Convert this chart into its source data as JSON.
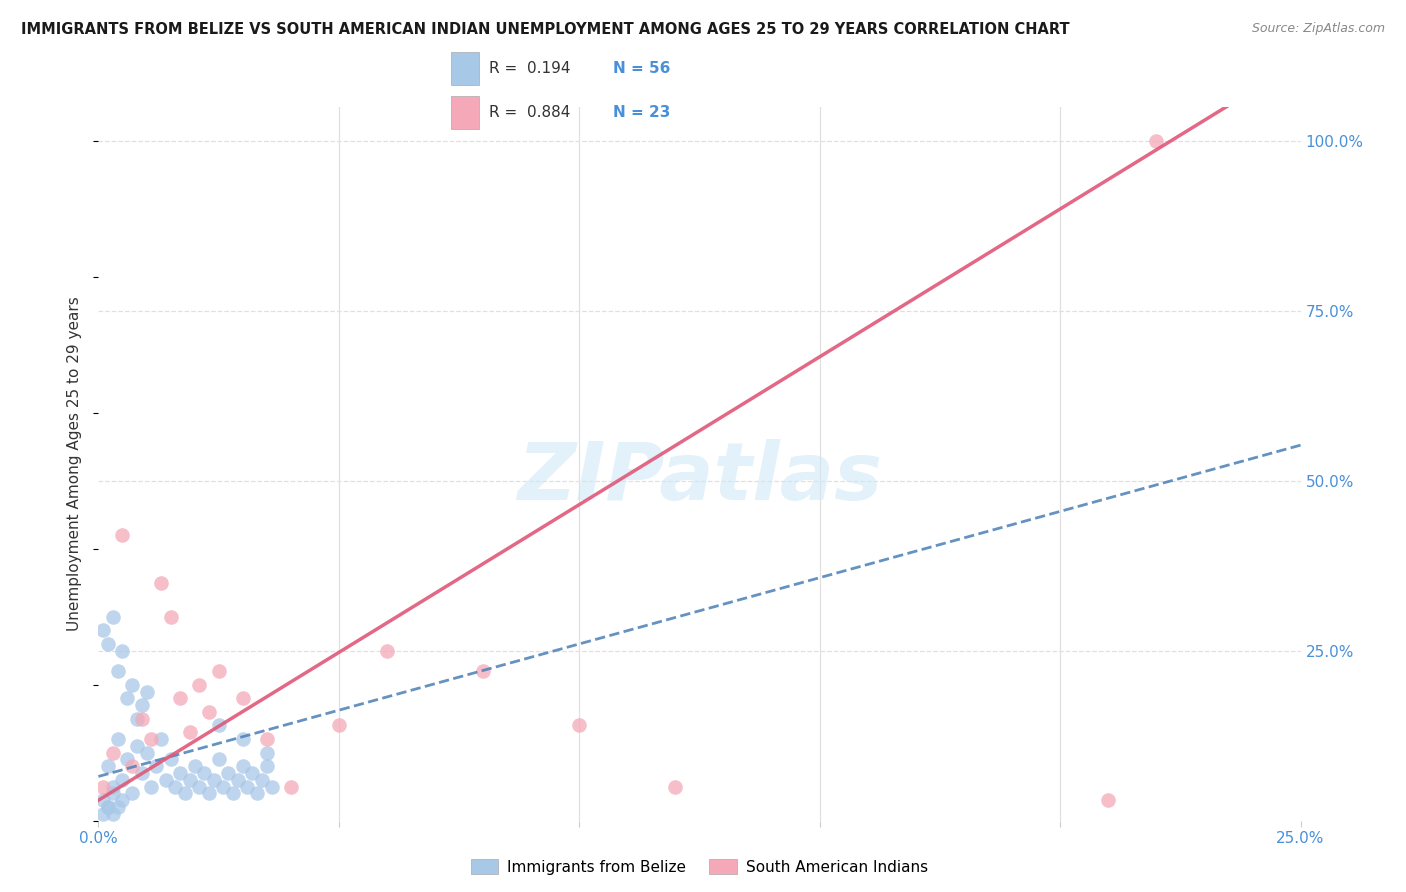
{
  "title": "IMMIGRANTS FROM BELIZE VS SOUTH AMERICAN INDIAN UNEMPLOYMENT AMONG AGES 25 TO 29 YEARS CORRELATION CHART",
  "source": "Source: ZipAtlas.com",
  "ylabel": "Unemployment Among Ages 25 to 29 years",
  "xlim": [
    0.0,
    0.25
  ],
  "ylim": [
    0.0,
    1.05
  ],
  "xticks": [
    0.0,
    0.05,
    0.1,
    0.15,
    0.2,
    0.25
  ],
  "yticks": [
    0.0,
    0.25,
    0.5,
    0.75,
    1.0
  ],
  "xtick_labels": [
    "0.0%",
    "",
    "",
    "",
    "",
    "25.0%"
  ],
  "ytick_labels_right": [
    "",
    "25.0%",
    "50.0%",
    "75.0%",
    "100.0%"
  ],
  "background_color": "#ffffff",
  "grid_color": "#e0e0e0",
  "watermark": "ZIPatlas",
  "legend_R1": "R =  0.194",
  "legend_N1": "N = 56",
  "legend_R2": "R =  0.884",
  "legend_N2": "N = 23",
  "series1_color": "#a8c8e8",
  "series2_color": "#f4a8b8",
  "trend1_color": "#4a7fb5",
  "trend2_color": "#e05878",
  "blue_dots_x": [
    0.002,
    0.003,
    0.004,
    0.005,
    0.006,
    0.007,
    0.008,
    0.009,
    0.01,
    0.011,
    0.012,
    0.013,
    0.014,
    0.015,
    0.016,
    0.017,
    0.018,
    0.019,
    0.02,
    0.021,
    0.022,
    0.023,
    0.024,
    0.025,
    0.026,
    0.027,
    0.028,
    0.029,
    0.03,
    0.031,
    0.032,
    0.033,
    0.034,
    0.035,
    0.036,
    0.001,
    0.002,
    0.003,
    0.004,
    0.005,
    0.006,
    0.007,
    0.008,
    0.009,
    0.01,
    0.001,
    0.002,
    0.003,
    0.004,
    0.005,
    0.001,
    0.002,
    0.003,
    0.025,
    0.03,
    0.035
  ],
  "blue_dots_y": [
    0.08,
    0.05,
    0.12,
    0.06,
    0.09,
    0.04,
    0.11,
    0.07,
    0.1,
    0.05,
    0.08,
    0.12,
    0.06,
    0.09,
    0.05,
    0.07,
    0.04,
    0.06,
    0.08,
    0.05,
    0.07,
    0.04,
    0.06,
    0.09,
    0.05,
    0.07,
    0.04,
    0.06,
    0.08,
    0.05,
    0.07,
    0.04,
    0.06,
    0.08,
    0.05,
    0.28,
    0.26,
    0.3,
    0.22,
    0.25,
    0.18,
    0.2,
    0.15,
    0.17,
    0.19,
    0.03,
    0.02,
    0.04,
    0.02,
    0.03,
    0.01,
    0.02,
    0.01,
    0.14,
    0.12,
    0.1
  ],
  "pink_dots_x": [
    0.001,
    0.003,
    0.005,
    0.007,
    0.009,
    0.011,
    0.013,
    0.015,
    0.017,
    0.019,
    0.021,
    0.023,
    0.025,
    0.03,
    0.035,
    0.04,
    0.05,
    0.06,
    0.08,
    0.1,
    0.12,
    0.21,
    0.22
  ],
  "pink_dots_y": [
    0.05,
    0.1,
    0.42,
    0.08,
    0.15,
    0.12,
    0.35,
    0.3,
    0.18,
    0.13,
    0.2,
    0.16,
    0.22,
    0.18,
    0.12,
    0.05,
    0.14,
    0.25,
    0.22,
    0.14,
    0.05,
    0.03,
    1.0
  ],
  "trend1_slope": 1.95,
  "trend1_intercept": 0.065,
  "trend2_slope": 4.35,
  "trend2_intercept": 0.03
}
